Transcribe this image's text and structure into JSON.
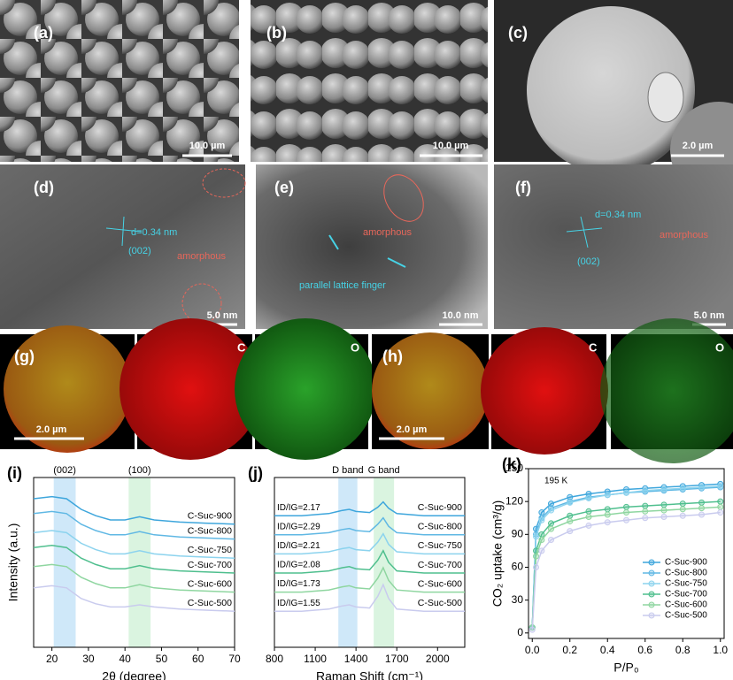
{
  "images": [
    {
      "label": "(a)",
      "scale_bar": "10.0 µm"
    },
    {
      "label": "(b)",
      "scale_bar": "10.0 µm"
    },
    {
      "label": "(c)",
      "scale_bar": "2.0 µm"
    },
    {
      "label": "(d)",
      "scale_bar": "5.0 nm",
      "annotations": [
        "d=0.34 nm",
        "(002)",
        "amorphous"
      ]
    },
    {
      "label": "(e)",
      "scale_bar": "10.0 nm",
      "annotations": [
        "amorphous",
        "parallel lattice finger"
      ]
    },
    {
      "label": "(f)",
      "scale_bar": "5.0 nm",
      "annotations": [
        "d=0.34 nm",
        "(002)",
        "amorphous"
      ]
    }
  ],
  "maps": [
    {
      "label": "(g)",
      "scale_bar": "2.0 µm",
      "elements": [
        "C",
        "O"
      ]
    },
    {
      "label": "(h)",
      "scale_bar": "2.0 µm",
      "elements": [
        "C",
        "O"
      ]
    }
  ],
  "chart_data": [
    {
      "type": "line",
      "panel_label": "(i)",
      "x_label": "2θ (degree)",
      "y_label": "Intensity (a.u.)",
      "xlim": [
        15,
        70
      ],
      "xticks": [
        20,
        30,
        40,
        50,
        60,
        70
      ],
      "ylim": [
        0,
        8
      ],
      "bands": [
        {
          "label": "(002)",
          "xrange": [
            20.5,
            26.5
          ],
          "color": "#bfe0f7"
        },
        {
          "label": "(100)",
          "xrange": [
            41,
            47
          ],
          "color": "#cdf0d6"
        }
      ],
      "x": [
        15,
        20,
        24,
        28,
        32,
        36,
        40,
        44,
        48,
        55,
        62,
        70
      ],
      "series": [
        {
          "name": "C-Suc-900",
          "color": "#3ea6dc",
          "values": [
            7.0,
            7.1,
            7.0,
            6.5,
            6.2,
            6.0,
            6.0,
            6.15,
            6.0,
            5.9,
            5.85,
            5.8
          ]
        },
        {
          "name": "C-Suc-800",
          "color": "#60b8e4",
          "values": [
            6.3,
            6.4,
            6.3,
            5.8,
            5.5,
            5.3,
            5.3,
            5.45,
            5.3,
            5.2,
            5.15,
            5.1
          ]
        },
        {
          "name": "C-Suc-750",
          "color": "#8cd3ee",
          "values": [
            5.4,
            5.5,
            5.4,
            4.9,
            4.6,
            4.4,
            4.4,
            4.55,
            4.4,
            4.3,
            4.25,
            4.2
          ]
        },
        {
          "name": "C-Suc-700",
          "color": "#4fbf8e",
          "values": [
            4.7,
            4.8,
            4.7,
            4.2,
            3.9,
            3.7,
            3.7,
            3.85,
            3.7,
            3.6,
            3.55,
            3.5
          ]
        },
        {
          "name": "C-Suc-600",
          "color": "#8fd6a0",
          "values": [
            3.8,
            3.9,
            3.8,
            3.3,
            3.0,
            2.8,
            2.8,
            2.95,
            2.8,
            2.7,
            2.65,
            2.6
          ]
        },
        {
          "name": "C-Suc-500",
          "color": "#c9cbee",
          "values": [
            2.8,
            2.9,
            2.8,
            2.3,
            2.05,
            1.9,
            1.9,
            2.0,
            1.9,
            1.8,
            1.75,
            1.7
          ]
        }
      ]
    },
    {
      "type": "line",
      "panel_label": "(j)",
      "x_label": "Raman Shift (cm⁻¹)",
      "xlim": [
        800,
        2200
      ],
      "xticks": [
        800,
        1100,
        1400,
        1700,
        2000
      ],
      "ylim": [
        0,
        8
      ],
      "bands": [
        {
          "label": "D band",
          "xrange": [
            1270,
            1410
          ],
          "color": "#bfe0f7"
        },
        {
          "label": "G band",
          "xrange": [
            1530,
            1680
          ],
          "color": "#cdf0d6"
        }
      ],
      "x": [
        800,
        1000,
        1200,
        1300,
        1350,
        1400,
        1500,
        1560,
        1600,
        1640,
        1700,
        1900,
        2200
      ],
      "series": [
        {
          "name": "C-Suc-900",
          "annotation": "ID/IG=2.17",
          "color": "#3ea6dc",
          "values": [
            6.2,
            6.2,
            6.3,
            6.45,
            6.5,
            6.4,
            6.35,
            6.6,
            6.85,
            6.55,
            6.3,
            6.2,
            6.2
          ]
        },
        {
          "name": "C-Suc-800",
          "annotation": "ID/IG=2.29",
          "color": "#60b8e4",
          "values": [
            5.3,
            5.3,
            5.4,
            5.55,
            5.6,
            5.5,
            5.45,
            5.8,
            6.1,
            5.7,
            5.4,
            5.3,
            5.3
          ]
        },
        {
          "name": "C-Suc-750",
          "annotation": "ID/IG=2.21",
          "color": "#8cd3ee",
          "values": [
            4.4,
            4.4,
            4.5,
            4.65,
            4.7,
            4.6,
            4.55,
            4.95,
            5.35,
            4.85,
            4.5,
            4.4,
            4.4
          ]
        },
        {
          "name": "C-Suc-700",
          "annotation": "ID/IG=2.08",
          "color": "#4fbf8e",
          "values": [
            3.5,
            3.5,
            3.6,
            3.75,
            3.8,
            3.7,
            3.65,
            4.1,
            4.55,
            4.0,
            3.6,
            3.5,
            3.5
          ]
        },
        {
          "name": "C-Suc-600",
          "annotation": "ID/IG=1.73",
          "color": "#8fd6a0",
          "values": [
            2.6,
            2.6,
            2.7,
            2.85,
            2.9,
            2.8,
            2.75,
            3.25,
            3.75,
            3.15,
            2.7,
            2.6,
            2.6
          ]
        },
        {
          "name": "C-Suc-500",
          "annotation": "ID/IG=1.55",
          "color": "#c9cbee",
          "values": [
            1.7,
            1.7,
            1.8,
            1.95,
            2.0,
            1.9,
            1.85,
            2.4,
            2.95,
            2.3,
            1.8,
            1.7,
            1.7
          ]
        }
      ]
    },
    {
      "type": "scatter",
      "panel_label": "(k)",
      "x_label": "P/P₀",
      "y_label": "CO₂ uptake (cm³/g)",
      "annotation": "195 K",
      "xlim": [
        -0.02,
        1.02
      ],
      "xticks": [
        {
          "value": 0,
          "label": "0.0"
        },
        0.2,
        0.4,
        0.6,
        0.8,
        {
          "value": 1,
          "label": "1.0"
        }
      ],
      "ylim": [
        -5,
        150
      ],
      "yticks": [
        0,
        30,
        60,
        90,
        120,
        150
      ],
      "legend": "lower right",
      "x": [
        0,
        0.02,
        0.05,
        0.1,
        0.2,
        0.3,
        0.4,
        0.5,
        0.6,
        0.7,
        0.8,
        0.9,
        1.0
      ],
      "series": [
        {
          "name": "C-Suc-900",
          "color": "#3ea6dc",
          "values": [
            5,
            95,
            110,
            118,
            124,
            127,
            129,
            131,
            132,
            133,
            134,
            135,
            136
          ]
        },
        {
          "name": "C-Suc-800",
          "color": "#60b8e4",
          "values": [
            5,
            90,
            105,
            114,
            120,
            124,
            126,
            128,
            129,
            130,
            131,
            132,
            133
          ]
        },
        {
          "name": "C-Suc-750",
          "color": "#8cd3ee",
          "values": [
            5,
            88,
            103,
            112,
            119,
            123,
            126,
            128,
            130,
            131,
            132,
            133,
            134
          ]
        },
        {
          "name": "C-Suc-700",
          "color": "#4fbf8e",
          "values": [
            5,
            75,
            90,
            100,
            107,
            111,
            113,
            115,
            116,
            117,
            118,
            119,
            120
          ]
        },
        {
          "name": "C-Suc-600",
          "color": "#8fd6a0",
          "values": [
            5,
            70,
            85,
            95,
            102,
            106,
            108,
            110,
            111,
            112,
            113,
            114,
            115
          ]
        },
        {
          "name": "C-Suc-500",
          "color": "#c9cbee",
          "values": [
            3,
            60,
            75,
            85,
            93,
            98,
            101,
            103,
            105,
            106,
            107,
            108,
            110
          ]
        }
      ]
    }
  ]
}
